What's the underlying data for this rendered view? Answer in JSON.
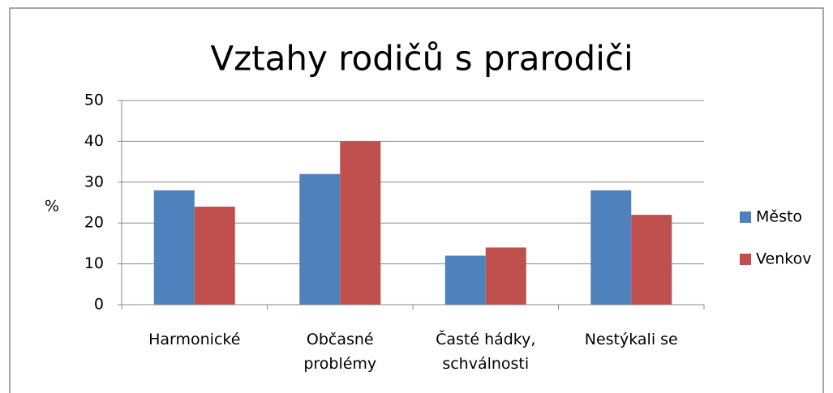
{
  "chart_data": {
    "type": "bar",
    "title": "Vztahy rodičů s prarodiči",
    "ylabel": "%",
    "categories": [
      "Harmonické",
      "Občasné problémy",
      "Časté hádky, schválnosti",
      "Nestýkali se"
    ],
    "series": [
      {
        "name": "Město",
        "color": "#4f81bd",
        "values": [
          28,
          32,
          12,
          28
        ]
      },
      {
        "name": "Venkov",
        "color": "#c0504d",
        "values": [
          24,
          40,
          14,
          22
        ]
      }
    ],
    "ylim": [
      0,
      50
    ],
    "yticks": [
      0,
      10,
      20,
      30,
      40,
      50
    ],
    "grid": true,
    "legend": "right"
  }
}
